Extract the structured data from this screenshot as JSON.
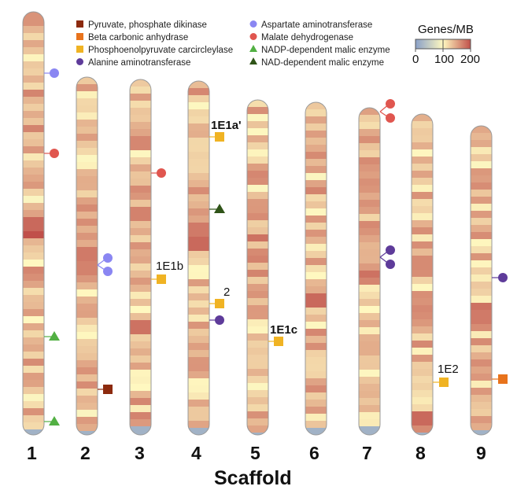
{
  "axis_title": "Scaffold",
  "colors": {
    "pyruvate_phosphate_dikinase": "#8c2a0e",
    "beta_carbonic_anhydrase": "#e8731c",
    "pepc": "#f0b323",
    "alanine_aminotransferase": "#5e3b9a",
    "aspartate_aminotransferase": "#8a86f2",
    "malate_dehydrogenase": "#e0564f",
    "nadp_malic_enzyme": "#52b043",
    "nad_malic_enzyme": "#2f5418"
  },
  "legend": [
    {
      "label": "Pyruvate, phosphate dikinase",
      "shape": "square",
      "color": "#8c2a0e"
    },
    {
      "label": "Beta carbonic anhydrase",
      "shape": "square",
      "color": "#e8731c"
    },
    {
      "label": "Phosphoenolpyruvate carcircleylase",
      "shape": "square",
      "color": "#f0b323"
    },
    {
      "label": "Alanine aminotransferase",
      "shape": "circle",
      "color": "#5e3b9a"
    },
    {
      "label": "Aspartate aminotransferase",
      "shape": "circle",
      "color": "#8a86f2"
    },
    {
      "label": "Malate dehydrogenase",
      "shape": "circle",
      "color": "#e0564f"
    },
    {
      "label": "NADP-dependent malic enzyme",
      "shape": "triangle",
      "color": "#52b043"
    },
    {
      "label": "NAD-dependent malic enzyme",
      "shape": "triangle",
      "color": "#2f5418"
    }
  ],
  "color_scale": {
    "title": "Genes/MB",
    "ticks": [
      "0",
      "100",
      "200"
    ],
    "stops": [
      "#8aa0c8",
      "#fff8c0",
      "#c0504a"
    ]
  },
  "scaffolds": [
    {
      "label": "1"
    },
    {
      "label": "2"
    },
    {
      "label": "3"
    },
    {
      "label": "4"
    },
    {
      "label": "5"
    },
    {
      "label": "6"
    },
    {
      "label": "7"
    },
    {
      "label": "8"
    },
    {
      "label": "9"
    }
  ],
  "gene_labels": [
    {
      "text": "1E1a'",
      "bold": true
    },
    {
      "text": "1E1b",
      "bold": false
    },
    {
      "text": "2",
      "bold": false
    },
    {
      "text": "1E1c",
      "bold": true
    },
    {
      "text": "1E2",
      "bold": false
    }
  ]
}
